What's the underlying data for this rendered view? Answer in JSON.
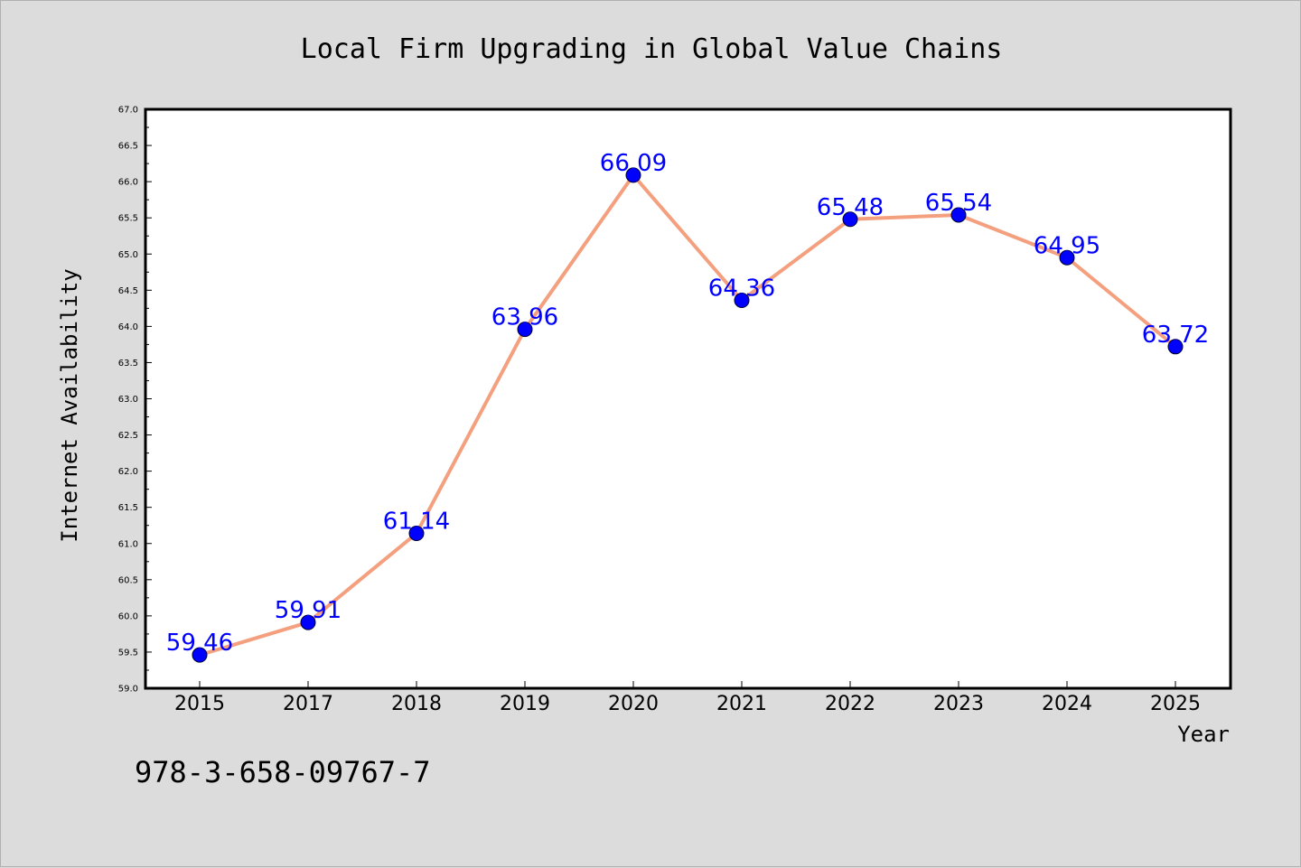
{
  "isbn": "978-3-658-09767-7",
  "colors": {
    "background": "#dcdcdc",
    "plot_background": "#ffffff",
    "line": "#f4a07f",
    "marker": "#0000ff",
    "data_label": "#0000ff"
  },
  "chart_data": {
    "type": "line",
    "title": "Local Firm Upgrading in Global Value Chains",
    "xlabel": "Year",
    "ylabel": "Internet Availability",
    "categories": [
      "2015",
      "2017",
      "2018",
      "2019",
      "2020",
      "2021",
      "2022",
      "2023",
      "2024",
      "2025"
    ],
    "series": [
      {
        "values": [
          59.46,
          59.91,
          61.14,
          63.96,
          66.09,
          64.36,
          65.48,
          65.54,
          64.95,
          63.72
        ],
        "labels": [
          "59.46",
          "59.91",
          "61.14",
          "63.96",
          "66.09",
          "64.36",
          "65.48",
          "65.54",
          "64.95",
          "63.72"
        ]
      }
    ],
    "ylim": [
      59.0,
      67.0
    ],
    "yticks": [
      "59.0",
      "59.5",
      "60.0",
      "60.5",
      "61.0",
      "61.5",
      "62.0",
      "62.5",
      "63.0",
      "63.5",
      "64.0",
      "64.5",
      "65.0",
      "65.5",
      "66.0",
      "66.5",
      "67.0"
    ],
    "grid": false,
    "legend": "none",
    "markers": "circle"
  }
}
